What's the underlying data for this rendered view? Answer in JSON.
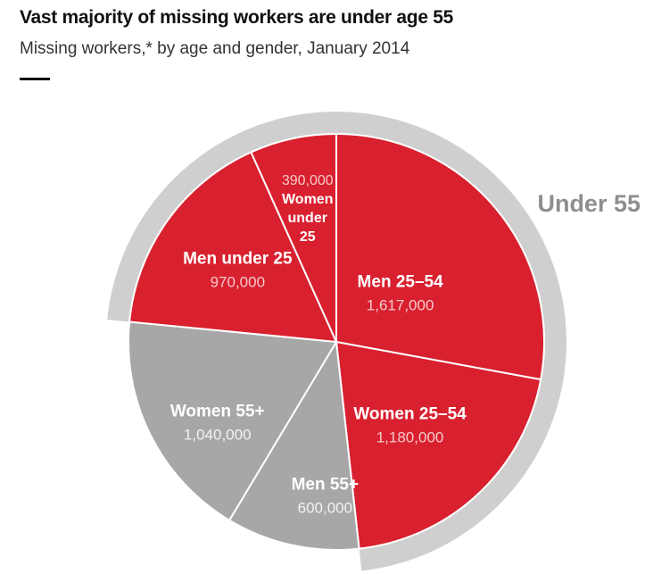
{
  "header": {
    "title": "Vast majority of missing workers are under age 55",
    "subtitle": "Missing workers,* by age and gender, January 2014"
  },
  "colors": {
    "under55": "#d9202f",
    "over55": "#a7a7a8",
    "outer_ring": "#cfcfcf",
    "outer_label": "#8e8e8e",
    "label_value_on_red": "#f4c9cc",
    "label_value_on_gray": "#f2f2f2"
  },
  "chart_data": {
    "type": "pie",
    "title": "Vast majority of missing workers are under age 55",
    "subtitle": "Missing workers,* by age and gender, January 2014",
    "slices": [
      {
        "name": "Men  25–54",
        "value": 1617000,
        "value_label": "1,617,000",
        "group": "under55"
      },
      {
        "name": "Women 25–54",
        "value": 1180000,
        "value_label": "1,180,000",
        "group": "under55"
      },
      {
        "name": "Men 55+",
        "value": 600000,
        "value_label": "600,000",
        "group": "over55"
      },
      {
        "name": "Women 55+",
        "value": 1040000,
        "value_label": "1,040,000",
        "group": "over55"
      },
      {
        "name": "Men under 25",
        "value": 970000,
        "value_label": "970,000",
        "group": "under55"
      },
      {
        "name": "Women under 25",
        "value": 390000,
        "value_label": "390,000",
        "group": "under55",
        "label_lines": [
          "390,000",
          "Women",
          "under",
          "25"
        ]
      }
    ],
    "outer_ring": {
      "label": "Under 55",
      "groups": [
        "under55"
      ]
    }
  }
}
